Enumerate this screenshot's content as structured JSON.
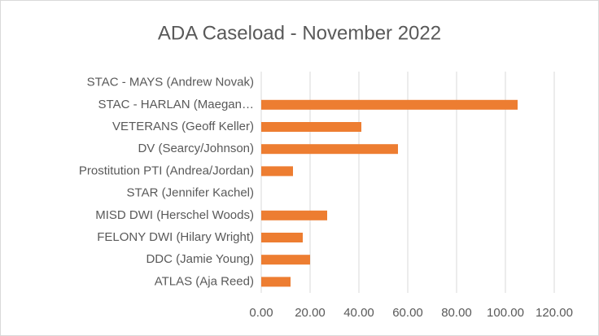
{
  "chart_data": {
    "type": "bar",
    "orientation": "horizontal",
    "title": "ADA Caseload - November 2022",
    "categories": [
      "STAC - MAYS (Andrew Novak)",
      "STAC - HARLAN (Maegan…",
      "VETERANS (Geoff Keller)",
      "DV (Searcy/Johnson)",
      "Prostitution PTI (Andrea/Jordan)",
      "STAR (Jennifer Kachel)",
      "MISD DWI (Herschel Woods)",
      "FELONY DWI (Hilary Wright)",
      "DDC (Jamie Young)",
      "ATLAS (Aja Reed)"
    ],
    "values": [
      0,
      105,
      41,
      56,
      13,
      0,
      27,
      17,
      20,
      12
    ],
    "color": "#ed7d31",
    "xlim": [
      0,
      120
    ],
    "xticks": [
      {
        "value": 0,
        "label": "0.00"
      },
      {
        "value": 20,
        "label": "20.00"
      },
      {
        "value": 40,
        "label": "40.00"
      },
      {
        "value": 60,
        "label": "60.00"
      },
      {
        "value": 80,
        "label": "80.00"
      },
      {
        "value": 100,
        "label": "100.00"
      },
      {
        "value": 120,
        "label": "120.00"
      }
    ],
    "grid": true
  }
}
